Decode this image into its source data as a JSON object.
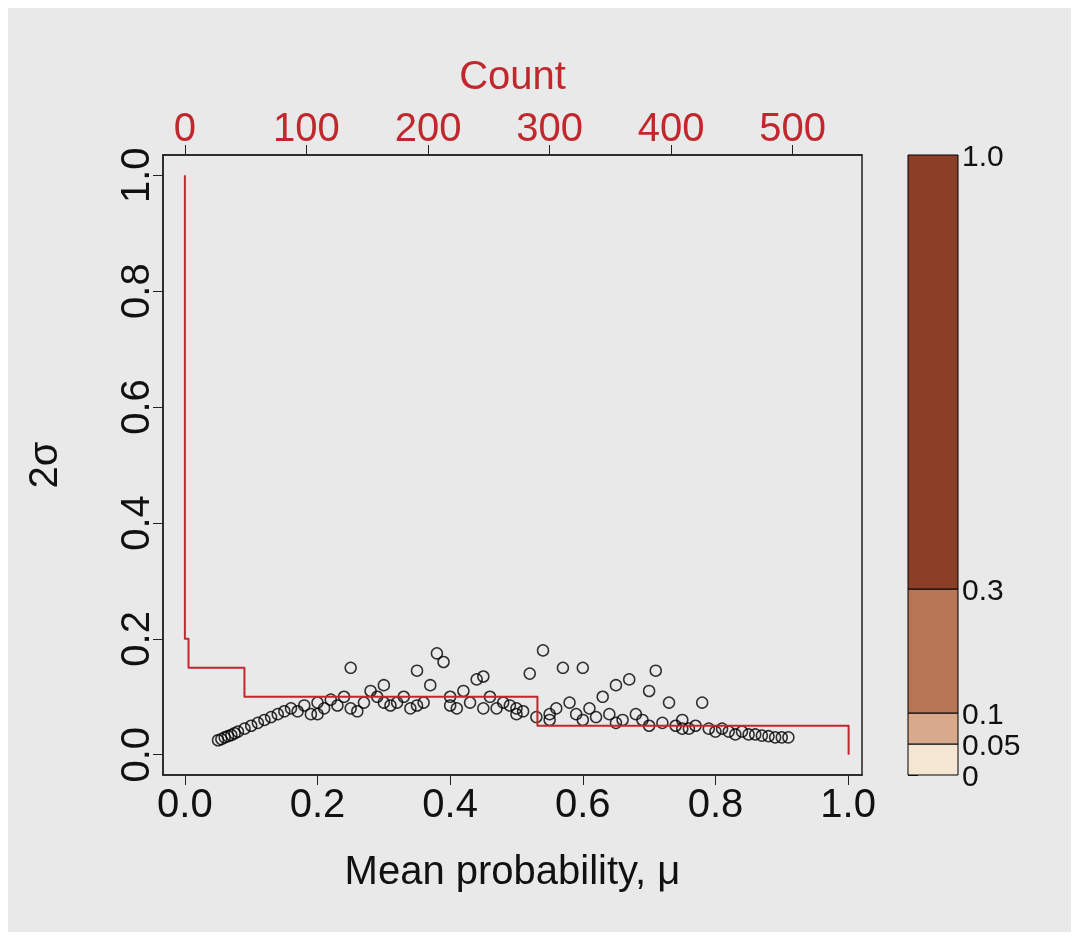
{
  "chart_data": {
    "type": "scatter",
    "xlabel": "Mean probability, μ",
    "ylabel": "2σ",
    "x2label": "Count",
    "grid": false,
    "xlim": [
      -0.033,
      1.021
    ],
    "xticks": [
      {
        "value": 0,
        "label": "0.0"
      },
      {
        "value": 0.2,
        "label": "0.2"
      },
      {
        "value": 0.4,
        "label": "0.4"
      },
      {
        "value": 0.6,
        "label": "0.6"
      },
      {
        "value": 0.8,
        "label": "0.8"
      },
      {
        "value": 1,
        "label": "1.0"
      }
    ],
    "ylim": [
      -0.035,
      1.035
    ],
    "yticks": [
      {
        "value": 0,
        "label": "0.0"
      },
      {
        "value": 0.2,
        "label": "0.2"
      },
      {
        "value": 0.4,
        "label": "0.4"
      },
      {
        "value": 0.6,
        "label": "0.6"
      },
      {
        "value": 0.8,
        "label": "0.8"
      },
      {
        "value": 1,
        "label": "1.0"
      }
    ],
    "x2lim": [
      -18,
      557
    ],
    "x2ticks": [
      0,
      100,
      200,
      300,
      400,
      500
    ],
    "clim": [
      0,
      1
    ],
    "cticks": [
      0,
      0.05,
      0.1,
      0.3,
      {
        "value": 1,
        "label": "1.0"
      }
    ],
    "colors": [
      "#f5e6d3",
      "#d8a98a",
      "#b87556",
      "#8c3f27"
    ],
    "series": [
      {
        "marker": "circle",
        "color": "#000000",
        "x": [
          0.05,
          0.055,
          0.06,
          0.065,
          0.07,
          0.075,
          0.08,
          0.09,
          0.1,
          0.11,
          0.12,
          0.13,
          0.14,
          0.15,
          0.16,
          0.17,
          0.18,
          0.19,
          0.2,
          0.21,
          0.22,
          0.23,
          0.24,
          0.25,
          0.26,
          0.27,
          0.28,
          0.29,
          0.3,
          0.31,
          0.32,
          0.33,
          0.34,
          0.35,
          0.36,
          0.37,
          0.38,
          0.39,
          0.4,
          0.41,
          0.42,
          0.43,
          0.44,
          0.45,
          0.46,
          0.47,
          0.48,
          0.49,
          0.5,
          0.51,
          0.52,
          0.53,
          0.54,
          0.55,
          0.56,
          0.57,
          0.58,
          0.59,
          0.6,
          0.61,
          0.62,
          0.63,
          0.64,
          0.65,
          0.66,
          0.67,
          0.68,
          0.69,
          0.7,
          0.71,
          0.72,
          0.73,
          0.74,
          0.75,
          0.76,
          0.77,
          0.78,
          0.79,
          0.8,
          0.81,
          0.82,
          0.83,
          0.84,
          0.85,
          0.86,
          0.87,
          0.88,
          0.89,
          0.9,
          0.91,
          0.3,
          0.35,
          0.4,
          0.45,
          0.6,
          0.65,
          0.7,
          0.75,
          0.2,
          0.25,
          0.5,
          0.55
        ],
        "values": [
          0.025,
          0.027,
          0.03,
          0.032,
          0.034,
          0.037,
          0.04,
          0.045,
          0.05,
          0.055,
          0.06,
          0.065,
          0.07,
          0.075,
          0.08,
          0.075,
          0.085,
          0.07,
          0.09,
          0.08,
          0.095,
          0.085,
          0.1,
          0.15,
          0.075,
          0.09,
          0.11,
          0.1,
          0.12,
          0.085,
          0.09,
          0.1,
          0.08,
          0.145,
          0.09,
          0.12,
          0.175,
          0.16,
          0.1,
          0.08,
          0.11,
          0.09,
          0.13,
          0.135,
          0.1,
          0.08,
          0.09,
          0.085,
          0.08,
          0.075,
          0.14,
          0.065,
          0.18,
          0.07,
          0.08,
          0.15,
          0.09,
          0.07,
          0.15,
          0.08,
          0.065,
          0.1,
          0.07,
          0.12,
          0.06,
          0.13,
          0.07,
          0.06,
          0.11,
          0.145,
          0.055,
          0.09,
          0.05,
          0.06,
          0.045,
          0.05,
          0.09,
          0.045,
          0.04,
          0.045,
          0.04,
          0.035,
          0.04,
          0.035,
          0.035,
          0.033,
          0.032,
          0.03,
          0.03,
          0.03,
          0.09,
          0.085,
          0.085,
          0.08,
          0.06,
          0.055,
          0.05,
          0.045,
          0.07,
          0.08,
          0.07,
          0.06
        ]
      },
      {
        "type": "line",
        "marker": "none",
        "axis": "x2",
        "color": "#c0282d",
        "x": [
          0,
          0,
          1,
          1,
          3,
          3,
          49,
          49,
          290,
          290,
          546,
          546
        ],
        "values": [
          1,
          0.2,
          0.2,
          0.2,
          0.2,
          0.15,
          0.15,
          0.1,
          0.1,
          0.05,
          0.05,
          0
        ]
      }
    ]
  }
}
